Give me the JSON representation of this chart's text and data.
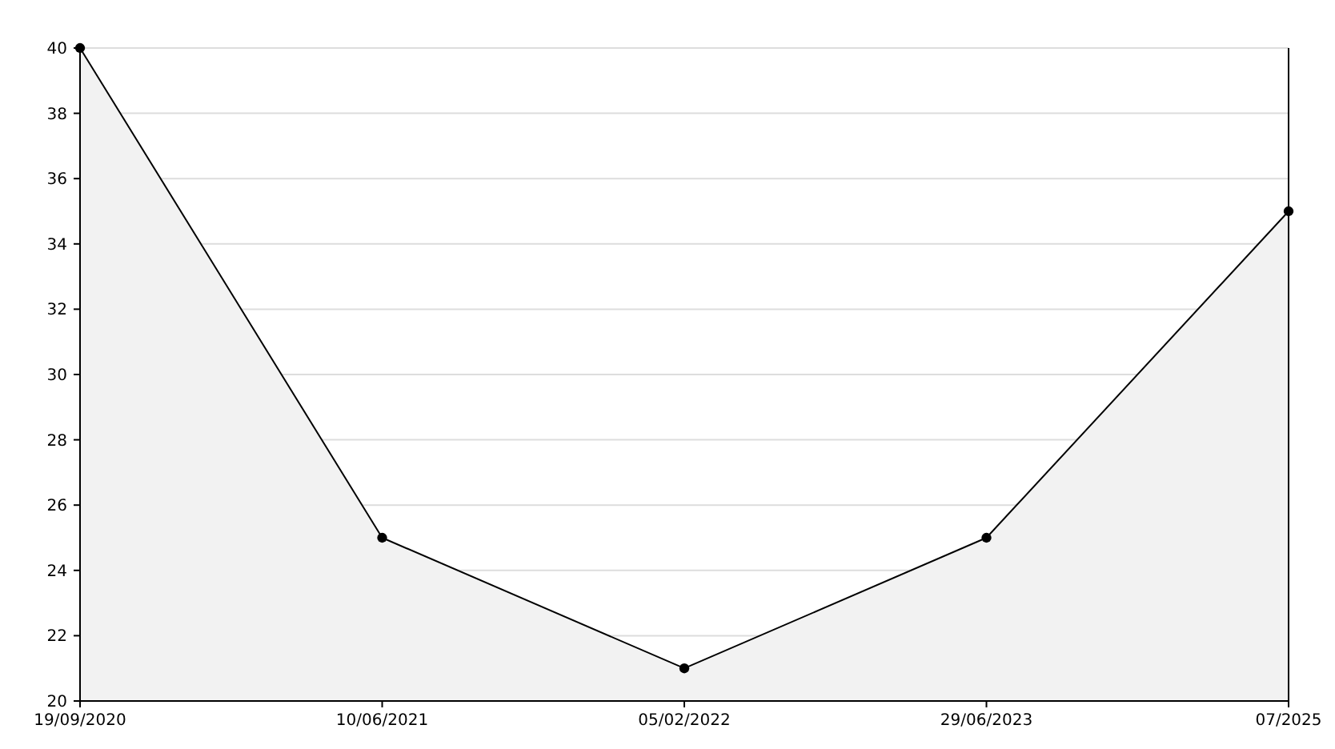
{
  "chart_data": {
    "type": "area",
    "categories": [
      "19/09/2020",
      "10/06/2021",
      "05/02/2022",
      "29/06/2023",
      "07/2025"
    ],
    "series": [
      {
        "color": "#000000",
        "values": [
          40,
          25,
          21,
          25,
          35
        ]
      }
    ],
    "ylim": [
      20,
      40
    ],
    "yticks": [
      20,
      22,
      24,
      26,
      28,
      30,
      32,
      34,
      36,
      38,
      40
    ],
    "grid": "y",
    "marker": "circle",
    "line_style": "solid"
  }
}
